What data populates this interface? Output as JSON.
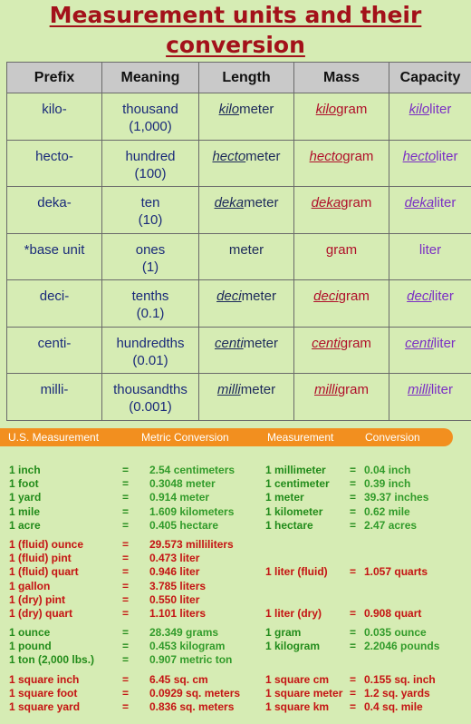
{
  "title": {
    "line1": "Measurement units and their",
    "line2": "conversion"
  },
  "table": {
    "headers": [
      "Prefix",
      "Meaning",
      "Length",
      "Mass",
      "Capacity"
    ],
    "rows": [
      {
        "prefix": "kilo-",
        "meaning": "thousand",
        "meaning_num": "(1,000)",
        "stem": "kilo",
        "length": "meter",
        "mass": "gram",
        "capacity": "liter"
      },
      {
        "prefix": "hecto-",
        "meaning": "hundred",
        "meaning_num": "(100)",
        "stem": "hecto",
        "length": "meter",
        "mass": "gram",
        "capacity": "liter"
      },
      {
        "prefix": "deka-",
        "meaning": "ten",
        "meaning_num": "(10)",
        "stem": "deka",
        "length": "meter",
        "mass": "gram",
        "capacity": "liter"
      },
      {
        "prefix": "*base unit",
        "meaning": "ones",
        "meaning_num": "(1)",
        "stem": "",
        "length": "meter",
        "mass": "gram",
        "capacity": "liter"
      },
      {
        "prefix": "deci-",
        "meaning": "tenths",
        "meaning_num": "(0.1)",
        "stem": "deci",
        "length": "meter",
        "mass": "gram",
        "capacity": "liter"
      },
      {
        "prefix": "centi-",
        "meaning": "hundredths",
        "meaning_num": "(0.01)",
        "stem": "centi",
        "length": "meter",
        "mass": "gram",
        "capacity": "liter"
      },
      {
        "prefix": "milli-",
        "meaning": "thousandths",
        "meaning_num": "(0.001)",
        "stem": "milli",
        "length": "meter",
        "mass": "gram",
        "capacity": "liter"
      }
    ]
  },
  "conversion_header": [
    "U.S. Measurement",
    "Metric Conversion",
    "Measurement",
    "Conversion"
  ],
  "conversion_groups": [
    {
      "color": "green",
      "rows": [
        [
          "1 inch",
          "=",
          "2.54 centimeters",
          "1 millimeter",
          "=",
          "0.04 inch"
        ],
        [
          "1 foot",
          "=",
          "0.3048 meter",
          "1 centimeter",
          "=",
          "0.39 inch"
        ],
        [
          "1 yard",
          "=",
          "0.914 meter",
          "1 meter",
          "=",
          "39.37 inches"
        ],
        [
          "1 mile",
          "=",
          "1.609 kilometers",
          "1 kilometer",
          "=",
          "0.62 mile"
        ],
        [
          "1 acre",
          "=",
          "0.405 hectare",
          "1 hectare",
          "=",
          "2.47 acres"
        ]
      ]
    },
    {
      "color": "red",
      "rows": [
        [
          "1 (fluid) ounce",
          "=",
          "29.573 milliliters",
          "",
          "",
          ""
        ],
        [
          "1 (fluid) pint",
          "=",
          "0.473 liter",
          "",
          "",
          ""
        ],
        [
          "1 (fluid) quart",
          "=",
          "0.946 liter",
          "1 liter (fluid)",
          "=",
          "1.057 quarts"
        ],
        [
          "1 gallon",
          "=",
          "3.785 liters",
          "",
          "",
          ""
        ],
        [
          "1 (dry) pint",
          "=",
          "0.550 liter",
          "",
          "",
          ""
        ],
        [
          "1 (dry) quart",
          "=",
          "1.101 liters",
          "1 liter (dry)",
          "=",
          "0.908 quart"
        ]
      ]
    },
    {
      "color": "green",
      "rows": [
        [
          "1 ounce",
          "=",
          "28.349 grams",
          "1 gram",
          "=",
          "0.035 ounce"
        ],
        [
          "1 pound",
          "=",
          "0.453 kilogram",
          "1 kilogram",
          "=",
          "2.2046 pounds"
        ],
        [
          "1 ton (2,000 lbs.)",
          "=",
          "0.907 metric ton",
          "",
          "",
          ""
        ]
      ]
    },
    {
      "color": "red",
      "rows": [
        [
          "1 square inch",
          "=",
          "6.45 sq. cm",
          "1 square cm",
          "=",
          "0.155 sq. inch"
        ],
        [
          "1 square foot",
          "=",
          "0.0929 sq. meters",
          "1 square meter",
          "=",
          "1.2 sq. yards"
        ],
        [
          "1 square yard",
          "=",
          "0.836 sq. meters",
          "1 square km",
          "=",
          "0.4 sq. mile"
        ]
      ]
    }
  ]
}
